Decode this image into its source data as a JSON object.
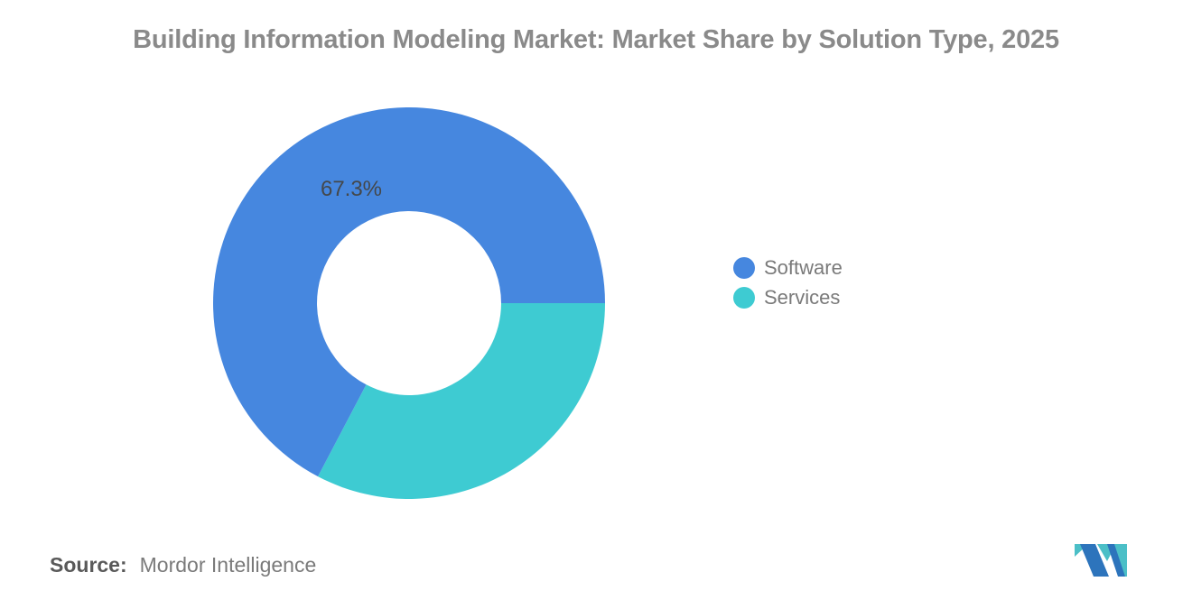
{
  "title": {
    "text": "Building Information Modeling Market: Market Share by Solution Type, 2025",
    "color": "#8a8a8a"
  },
  "chart_data": {
    "type": "pie",
    "subtype": "donut",
    "title": "Building Information Modeling Market: Market Share by Solution Type, 2025",
    "series": [
      {
        "name": "Software",
        "value": 67.3,
        "color": "#4687DF",
        "label": "67.3%"
      },
      {
        "name": "Services",
        "value": 32.7,
        "color": "#3ECBD2",
        "label": ""
      }
    ],
    "total": 100,
    "start_angle_css_deg": 90,
    "direction": "ccw",
    "inner_radius_ratio": 0.47,
    "legend_position": "right",
    "data_label_shown": "67.3%"
  },
  "legend": {
    "items": [
      {
        "label": "Software",
        "color": "#4687DF"
      },
      {
        "label": "Services",
        "color": "#3ECBD2"
      }
    ]
  },
  "source": {
    "label": "Source:",
    "value": "Mordor Intelligence"
  },
  "logo": {
    "name": "mordor-intelligence-logo",
    "blue": "#2D74BC",
    "teal": "#4BBFC7"
  }
}
